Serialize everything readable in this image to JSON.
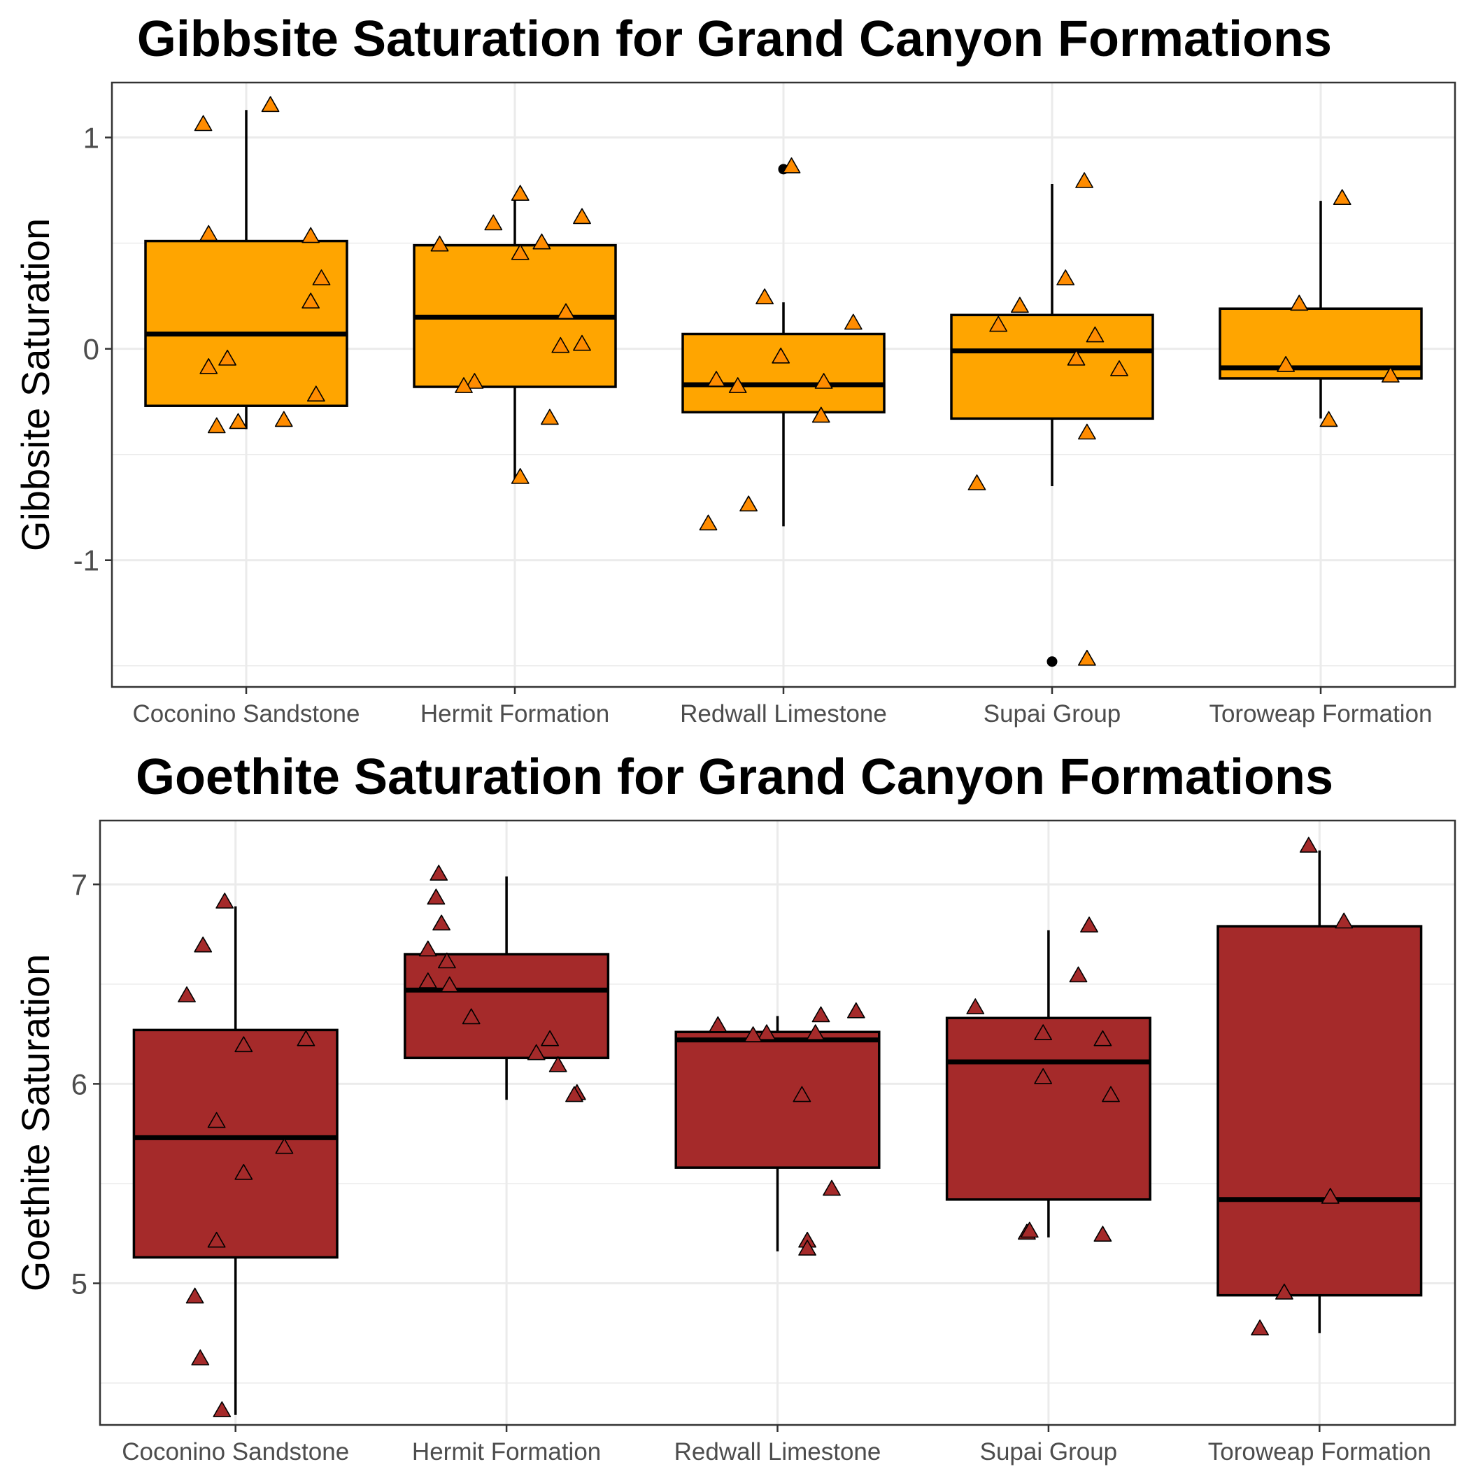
{
  "chart_data": [
    {
      "type": "box",
      "title": "Gibbsite Saturation for Grand Canyon Formations",
      "xlabel": "",
      "ylabel": "Gibbsite Saturation",
      "ylim": [
        -1.6,
        1.26
      ],
      "yticks": [
        1,
        0,
        -1
      ],
      "minor_grid": [
        0.5,
        -0.5,
        -1.5
      ],
      "grid": true,
      "legend": "none",
      "colors": {
        "box_fill": "#FFA500",
        "point_fill": "#FF8C00",
        "line": "#000000",
        "grid": "#EBEBEB",
        "panel_border": "#333333"
      },
      "categories": [
        "Coconino Sandstone",
        "Hermit Formation",
        "Redwall Limestone",
        "Supai Group",
        "Toroweap Formation"
      ],
      "boxes": [
        {
          "q1": -0.27,
          "median": 0.07,
          "q3": 0.51,
          "whisker_low": -0.38,
          "whisker_high": 1.13,
          "outliers": []
        },
        {
          "q1": -0.18,
          "median": 0.15,
          "q3": 0.49,
          "whisker_low": -0.62,
          "whisker_high": 0.71,
          "outliers": []
        },
        {
          "q1": -0.3,
          "median": -0.17,
          "q3": 0.07,
          "whisker_low": -0.84,
          "whisker_high": 0.22,
          "outliers": [
            0.85
          ]
        },
        {
          "q1": -0.33,
          "median": -0.01,
          "q3": 0.16,
          "whisker_low": -0.65,
          "whisker_high": 0.78,
          "outliers": [
            -1.48
          ]
        },
        {
          "q1": -0.14,
          "median": -0.09,
          "q3": 0.19,
          "whisker_low": -0.33,
          "whisker_high": 0.7,
          "outliers": []
        }
      ],
      "points": [
        {
          "x": "Coconino Sandstone",
          "dx": -0.16,
          "y": 1.06
        },
        {
          "x": "Coconino Sandstone",
          "dx": 0.09,
          "y": 1.15
        },
        {
          "x": "Coconino Sandstone",
          "dx": -0.14,
          "y": 0.54
        },
        {
          "x": "Coconino Sandstone",
          "dx": 0.24,
          "y": 0.53
        },
        {
          "x": "Coconino Sandstone",
          "dx": 0.28,
          "y": 0.33
        },
        {
          "x": "Coconino Sandstone",
          "dx": 0.24,
          "y": 0.22
        },
        {
          "x": "Coconino Sandstone",
          "dx": -0.07,
          "y": -0.05
        },
        {
          "x": "Coconino Sandstone",
          "dx": -0.14,
          "y": -0.09
        },
        {
          "x": "Coconino Sandstone",
          "dx": 0.26,
          "y": -0.22
        },
        {
          "x": "Coconino Sandstone",
          "dx": 0.14,
          "y": -0.34
        },
        {
          "x": "Coconino Sandstone",
          "dx": -0.03,
          "y": -0.35
        },
        {
          "x": "Coconino Sandstone",
          "dx": -0.11,
          "y": -0.37
        },
        {
          "x": "Hermit Formation",
          "dx": 0.02,
          "y": 0.73
        },
        {
          "x": "Hermit Formation",
          "dx": 0.25,
          "y": 0.62
        },
        {
          "x": "Hermit Formation",
          "dx": -0.08,
          "y": 0.59
        },
        {
          "x": "Hermit Formation",
          "dx": 0.1,
          "y": 0.5
        },
        {
          "x": "Hermit Formation",
          "dx": -0.28,
          "y": 0.49
        },
        {
          "x": "Hermit Formation",
          "dx": 0.02,
          "y": 0.45
        },
        {
          "x": "Hermit Formation",
          "dx": 0.19,
          "y": 0.17
        },
        {
          "x": "Hermit Formation",
          "dx": 0.25,
          "y": 0.02
        },
        {
          "x": "Hermit Formation",
          "dx": 0.17,
          "y": 0.01
        },
        {
          "x": "Hermit Formation",
          "dx": -0.15,
          "y": -0.16
        },
        {
          "x": "Hermit Formation",
          "dx": -0.19,
          "y": -0.18
        },
        {
          "x": "Hermit Formation",
          "dx": 0.13,
          "y": -0.33
        },
        {
          "x": "Hermit Formation",
          "dx": 0.02,
          "y": -0.61
        },
        {
          "x": "Redwall Limestone",
          "dx": 0.03,
          "y": 0.86
        },
        {
          "x": "Redwall Limestone",
          "dx": -0.07,
          "y": 0.24
        },
        {
          "x": "Redwall Limestone",
          "dx": 0.26,
          "y": 0.12
        },
        {
          "x": "Redwall Limestone",
          "dx": -0.01,
          "y": -0.04
        },
        {
          "x": "Redwall Limestone",
          "dx": -0.25,
          "y": -0.15
        },
        {
          "x": "Redwall Limestone",
          "dx": 0.15,
          "y": -0.16
        },
        {
          "x": "Redwall Limestone",
          "dx": -0.17,
          "y": -0.18
        },
        {
          "x": "Redwall Limestone",
          "dx": 0.14,
          "y": -0.32
        },
        {
          "x": "Redwall Limestone",
          "dx": -0.13,
          "y": -0.74
        },
        {
          "x": "Redwall Limestone",
          "dx": -0.28,
          "y": -0.83
        },
        {
          "x": "Supai Group",
          "dx": 0.12,
          "y": 0.79
        },
        {
          "x": "Supai Group",
          "dx": 0.05,
          "y": 0.33
        },
        {
          "x": "Supai Group",
          "dx": -0.12,
          "y": 0.2
        },
        {
          "x": "Supai Group",
          "dx": -0.2,
          "y": 0.11
        },
        {
          "x": "Supai Group",
          "dx": 0.16,
          "y": 0.06
        },
        {
          "x": "Supai Group",
          "dx": 0.09,
          "y": -0.05
        },
        {
          "x": "Supai Group",
          "dx": 0.25,
          "y": -0.1
        },
        {
          "x": "Supai Group",
          "dx": 0.13,
          "y": -0.4
        },
        {
          "x": "Supai Group",
          "dx": -0.28,
          "y": -0.64
        },
        {
          "x": "Supai Group",
          "dx": 0.13,
          "y": -1.47
        },
        {
          "x": "Toroweap Formation",
          "dx": 0.08,
          "y": 0.71
        },
        {
          "x": "Toroweap Formation",
          "dx": -0.08,
          "y": 0.21
        },
        {
          "x": "Toroweap Formation",
          "dx": -0.13,
          "y": -0.08
        },
        {
          "x": "Toroweap Formation",
          "dx": 0.26,
          "y": -0.13
        },
        {
          "x": "Toroweap Formation",
          "dx": 0.03,
          "y": -0.34
        }
      ]
    },
    {
      "type": "box",
      "title": "Goethite Saturation for Grand Canyon Formations",
      "xlabel": "",
      "ylabel": "Goethite Saturation",
      "ylim": [
        4.29,
        7.32
      ],
      "yticks": [
        7,
        6,
        5
      ],
      "minor_grid": [
        6.5,
        5.5,
        4.5
      ],
      "grid": true,
      "legend": "none",
      "colors": {
        "box_fill": "#A52A2A",
        "point_fill": "#A52A2A",
        "line": "#000000",
        "grid": "#EBEBEB",
        "panel_border": "#333333"
      },
      "categories": [
        "Coconino Sandstone",
        "Hermit Formation",
        "Redwall Limestone",
        "Supai Group",
        "Toroweap Formation"
      ],
      "boxes": [
        {
          "q1": 5.13,
          "median": 5.73,
          "q3": 6.27,
          "whisker_low": 4.34,
          "whisker_high": 6.89,
          "outliers": []
        },
        {
          "q1": 6.13,
          "median": 6.47,
          "q3": 6.65,
          "whisker_low": 5.92,
          "whisker_high": 7.04,
          "outliers": []
        },
        {
          "q1": 5.58,
          "median": 6.22,
          "q3": 6.26,
          "whisker_low": 5.16,
          "whisker_high": 6.34,
          "outliers": []
        },
        {
          "q1": 5.42,
          "median": 6.11,
          "q3": 6.33,
          "whisker_low": 5.23,
          "whisker_high": 6.77,
          "outliers": []
        },
        {
          "q1": 4.94,
          "median": 5.42,
          "q3": 6.79,
          "whisker_low": 4.75,
          "whisker_high": 7.17,
          "outliers": []
        }
      ],
      "points": [
        {
          "x": "Coconino Sandstone",
          "dx": -0.04,
          "y": 6.91
        },
        {
          "x": "Coconino Sandstone",
          "dx": -0.12,
          "y": 6.69
        },
        {
          "x": "Coconino Sandstone",
          "dx": -0.18,
          "y": 6.44
        },
        {
          "x": "Coconino Sandstone",
          "dx": 0.26,
          "y": 6.22
        },
        {
          "x": "Coconino Sandstone",
          "dx": 0.03,
          "y": 6.19
        },
        {
          "x": "Coconino Sandstone",
          "dx": -0.07,
          "y": 5.81
        },
        {
          "x": "Coconino Sandstone",
          "dx": 0.18,
          "y": 5.68
        },
        {
          "x": "Coconino Sandstone",
          "dx": 0.03,
          "y": 5.55
        },
        {
          "x": "Coconino Sandstone",
          "dx": -0.07,
          "y": 5.21
        },
        {
          "x": "Coconino Sandstone",
          "dx": -0.15,
          "y": 4.93
        },
        {
          "x": "Coconino Sandstone",
          "dx": -0.13,
          "y": 4.62
        },
        {
          "x": "Coconino Sandstone",
          "dx": -0.05,
          "y": 4.36
        },
        {
          "x": "Hermit Formation",
          "dx": -0.25,
          "y": 7.05
        },
        {
          "x": "Hermit Formation",
          "dx": -0.26,
          "y": 6.93
        },
        {
          "x": "Hermit Formation",
          "dx": -0.24,
          "y": 6.8
        },
        {
          "x": "Hermit Formation",
          "dx": -0.29,
          "y": 6.67
        },
        {
          "x": "Hermit Formation",
          "dx": -0.22,
          "y": 6.61
        },
        {
          "x": "Hermit Formation",
          "dx": -0.29,
          "y": 6.51
        },
        {
          "x": "Hermit Formation",
          "dx": -0.21,
          "y": 6.49
        },
        {
          "x": "Hermit Formation",
          "dx": -0.13,
          "y": 6.33
        },
        {
          "x": "Hermit Formation",
          "dx": 0.16,
          "y": 6.22
        },
        {
          "x": "Hermit Formation",
          "dx": 0.11,
          "y": 6.15
        },
        {
          "x": "Hermit Formation",
          "dx": 0.19,
          "y": 6.09
        },
        {
          "x": "Hermit Formation",
          "dx": 0.26,
          "y": 5.95
        },
        {
          "x": "Hermit Formation",
          "dx": 0.25,
          "y": 5.94
        },
        {
          "x": "Redwall Limestone",
          "dx": 0.29,
          "y": 6.36
        },
        {
          "x": "Redwall Limestone",
          "dx": 0.16,
          "y": 6.34
        },
        {
          "x": "Redwall Limestone",
          "dx": -0.22,
          "y": 6.29
        },
        {
          "x": "Redwall Limestone",
          "dx": 0.14,
          "y": 6.25
        },
        {
          "x": "Redwall Limestone",
          "dx": -0.04,
          "y": 6.25
        },
        {
          "x": "Redwall Limestone",
          "dx": -0.09,
          "y": 6.24
        },
        {
          "x": "Redwall Limestone",
          "dx": 0.09,
          "y": 5.94
        },
        {
          "x": "Redwall Limestone",
          "dx": 0.2,
          "y": 5.47
        },
        {
          "x": "Redwall Limestone",
          "dx": 0.11,
          "y": 5.21
        },
        {
          "x": "Redwall Limestone",
          "dx": 0.11,
          "y": 5.17
        },
        {
          "x": "Supai Group",
          "dx": -0.27,
          "y": 6.38
        },
        {
          "x": "Supai Group",
          "dx": 0.15,
          "y": 6.79
        },
        {
          "x": "Supai Group",
          "dx": 0.11,
          "y": 6.54
        },
        {
          "x": "Supai Group",
          "dx": -0.02,
          "y": 6.25
        },
        {
          "x": "Supai Group",
          "dx": 0.2,
          "y": 6.22
        },
        {
          "x": "Supai Group",
          "dx": -0.02,
          "y": 6.03
        },
        {
          "x": "Supai Group",
          "dx": 0.23,
          "y": 5.94
        },
        {
          "x": "Supai Group",
          "dx": -0.08,
          "y": 5.25
        },
        {
          "x": "Supai Group",
          "dx": -0.07,
          "y": 5.26
        },
        {
          "x": "Supai Group",
          "dx": 0.2,
          "y": 5.24
        },
        {
          "x": "Toroweap Formation",
          "dx": -0.04,
          "y": 7.19
        },
        {
          "x": "Toroweap Formation",
          "dx": 0.09,
          "y": 6.81
        },
        {
          "x": "Toroweap Formation",
          "dx": 0.04,
          "y": 5.43
        },
        {
          "x": "Toroweap Formation",
          "dx": -0.13,
          "y": 4.95
        },
        {
          "x": "Toroweap Formation",
          "dx": -0.22,
          "y": 4.77
        }
      ]
    }
  ]
}
